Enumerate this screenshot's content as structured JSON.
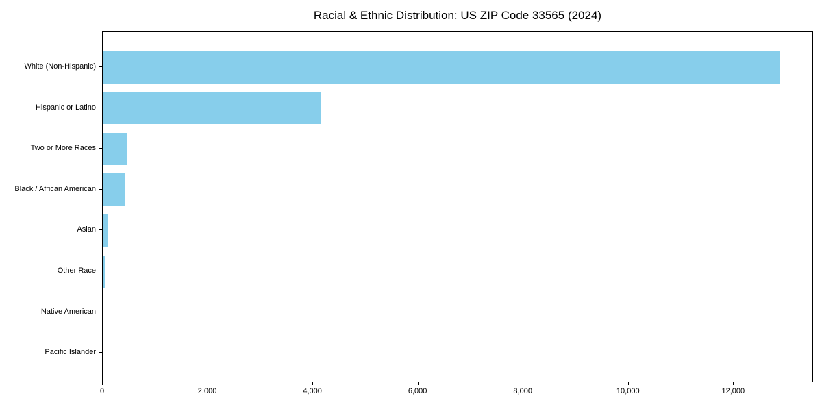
{
  "chart_data": {
    "type": "bar",
    "orientation": "horizontal",
    "title": "Racial & Ethnic Distribution: US ZIP Code 33565 (2024)",
    "categories": [
      "White (Non-Hispanic)",
      "Hispanic or Latino",
      "Two or More Races",
      "Black / African American",
      "Asian",
      "Other Race",
      "Native American",
      "Pacific Islander"
    ],
    "values": [
      12870,
      4140,
      450,
      420,
      100,
      50,
      0,
      0
    ],
    "xlabel": "",
    "ylabel": "",
    "xlim": [
      0,
      13520
    ],
    "x_ticks": [
      0,
      2000,
      4000,
      6000,
      8000,
      10000,
      12000
    ],
    "x_tick_labels": [
      "0",
      "2,000",
      "4,000",
      "6,000",
      "8,000",
      "10,000",
      "12,000"
    ],
    "bar_color": "#87CEEB",
    "grid": false,
    "legend": "none",
    "frame": "full-box"
  }
}
